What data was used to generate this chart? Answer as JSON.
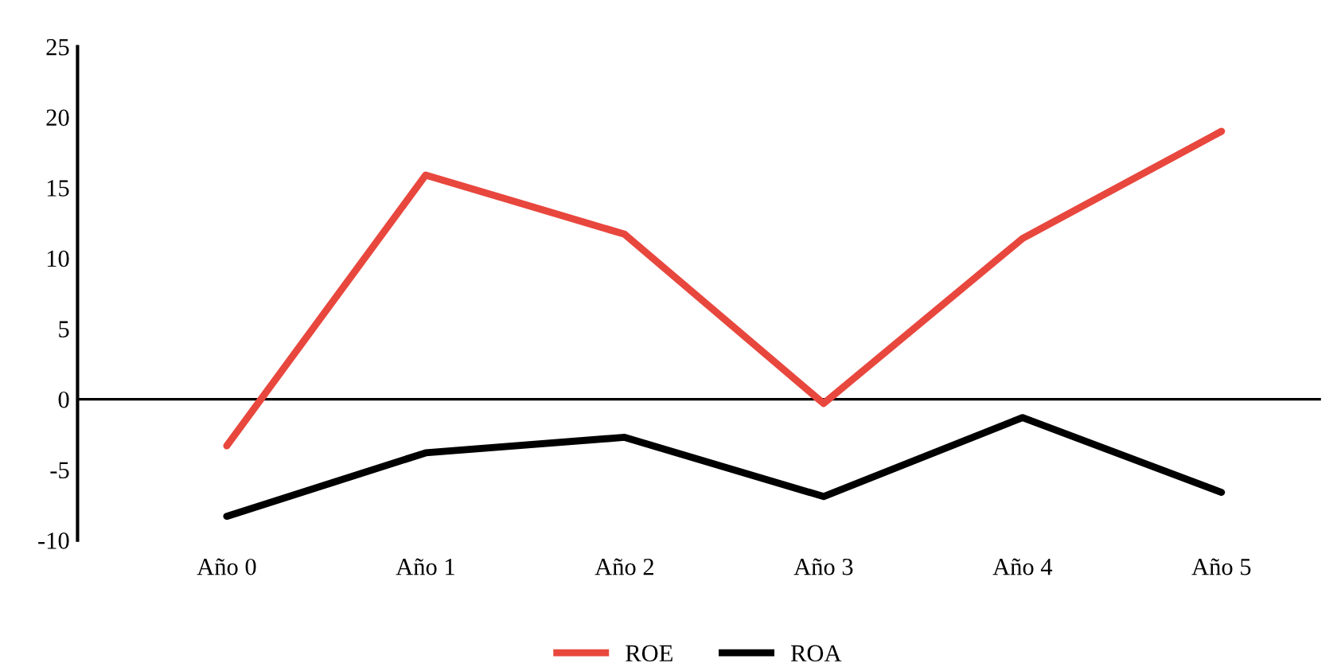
{
  "chart_data": {
    "type": "line",
    "categories": [
      "Año 0",
      "Año 1",
      "Año 2",
      "Año 3",
      "Año 4",
      "Año 5"
    ],
    "series": [
      {
        "name": "ROE",
        "color": "#e8473e",
        "values": [
          -3.3,
          15.9,
          11.7,
          -0.3,
          11.4,
          19.0
        ]
      },
      {
        "name": "ROA",
        "color": "#000000",
        "values": [
          -8.3,
          -3.8,
          -2.7,
          -6.9,
          -1.3,
          -6.6
        ]
      }
    ],
    "ylim": [
      -10,
      25
    ],
    "yticks": [
      -10,
      -5,
      0,
      5,
      10,
      15,
      20,
      25
    ],
    "ref_lines": [
      {
        "axis": "y",
        "value": 0,
        "color": "#000000"
      }
    ],
    "grid": false,
    "legend": "bottom",
    "marker": "none",
    "line_style": "solid"
  }
}
